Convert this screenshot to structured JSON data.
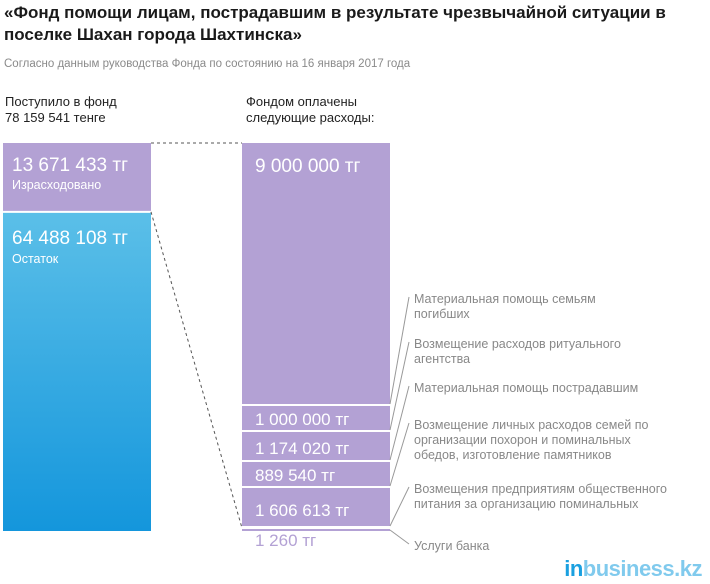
{
  "header": {
    "title": "«Фонд помощи лицам, пострадавшим в результате чрезвычайной ситуации в поселке Шахан города Шахтинска»",
    "subtitle": "Согласно данным руководства Фонда по состоянию на 16 января 2017 года"
  },
  "columns": {
    "left_heading": [
      "Поступило в фонд",
      "78 159 541 тенге"
    ],
    "right_heading": [
      "Фондом оплачены",
      "следующие расходы:"
    ]
  },
  "chart_data": {
    "type": "bar",
    "stacked": true,
    "unit": "тг",
    "total_received": 78159541,
    "left_bar": {
      "segments": [
        {
          "label": "Израсходовано",
          "value": 13671433,
          "value_label": "13 671 433 тг",
          "color": "#b3a1d4"
        },
        {
          "label": "Остаток",
          "value": 64488108,
          "value_label": "64 488 108 тг",
          "color_top": "#5bbfe8",
          "color_bottom": "#1496dc"
        }
      ]
    },
    "right_bar": {
      "color": "#b3a1d4",
      "segments": [
        {
          "value": 9000000,
          "value_label": "9 000 000 тг",
          "label": [
            "Материальная помощь семьям",
            "погибших"
          ]
        },
        {
          "value": 1000000,
          "value_label": "1 000 000 тг",
          "label": [
            "Возмещение расходов ритуального",
            "агентства"
          ]
        },
        {
          "value": 1174020,
          "value_label": "1 174 020 тг",
          "label": [
            "Материальная помощь пострадавшим"
          ]
        },
        {
          "value": 889540,
          "value_label": "889 540 тг",
          "label": [
            "Возмещение личных расходов семей по",
            "организации похорон и поминальных",
            "обедов, изготовление памятников"
          ]
        },
        {
          "value": 1606613,
          "value_label": "1 606 613 тг",
          "label": [
            "Возмещения предприятиям общественного",
            "питания за организацию поминальных"
          ]
        },
        {
          "value": 1260,
          "value_label": "1 260 тг",
          "label": [
            "Услуги банка"
          ]
        }
      ]
    }
  },
  "brand": {
    "part1": "in",
    "part2": "business.kz"
  }
}
